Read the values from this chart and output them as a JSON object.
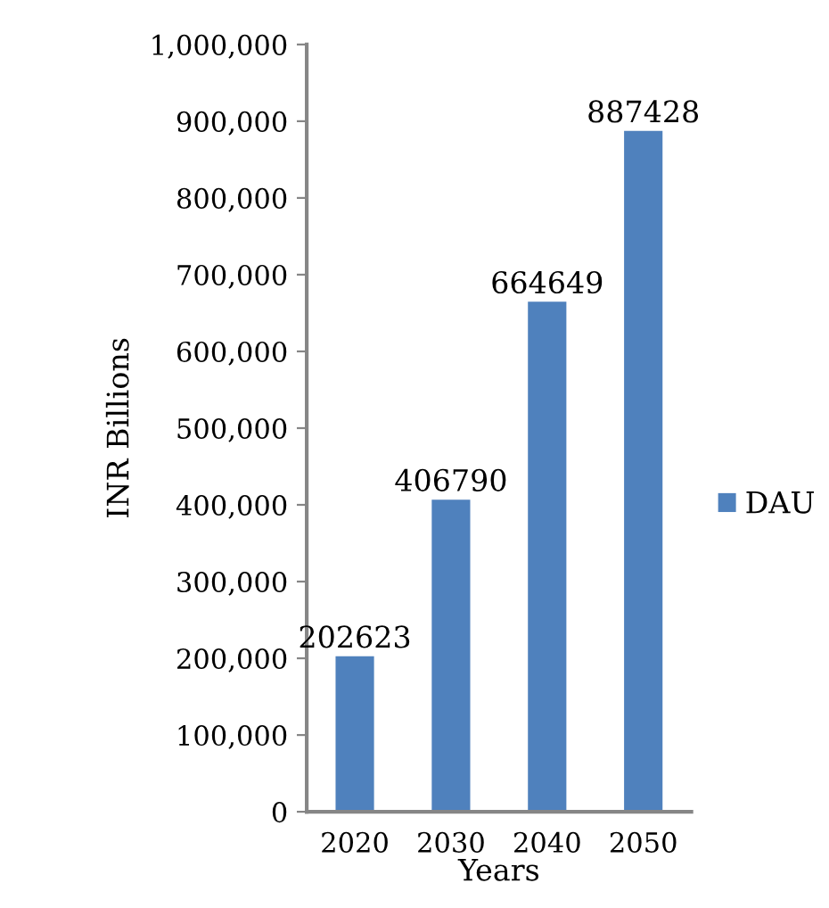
{
  "chart_data": {
    "type": "bar",
    "xlabel": "Years",
    "ylabel": "INR Billions",
    "categories": [
      "2020",
      "2030",
      "2040",
      "2050"
    ],
    "series": [
      {
        "name": "DAU",
        "color": "#4f81bd",
        "values": [
          202623,
          406790,
          664649,
          887428
        ]
      }
    ],
    "ylim": [
      0,
      1000000
    ],
    "yticks": [
      0,
      {
        "value": 100000,
        "label": "100,000"
      },
      {
        "value": 200000,
        "label": "200,000"
      },
      {
        "value": 300000,
        "label": "300,000"
      },
      {
        "value": 400000,
        "label": "400,000"
      },
      {
        "value": 500000,
        "label": "500,000"
      },
      {
        "value": 600000,
        "label": "600,000"
      },
      {
        "value": 700000,
        "label": "700,000"
      },
      {
        "value": 800000,
        "label": "800,000"
      },
      {
        "value": 900000,
        "label": "900,000"
      },
      {
        "value": 1000000,
        "label": "1,000,000"
      }
    ],
    "data_labels": true,
    "grid": false,
    "legend": "right"
  }
}
